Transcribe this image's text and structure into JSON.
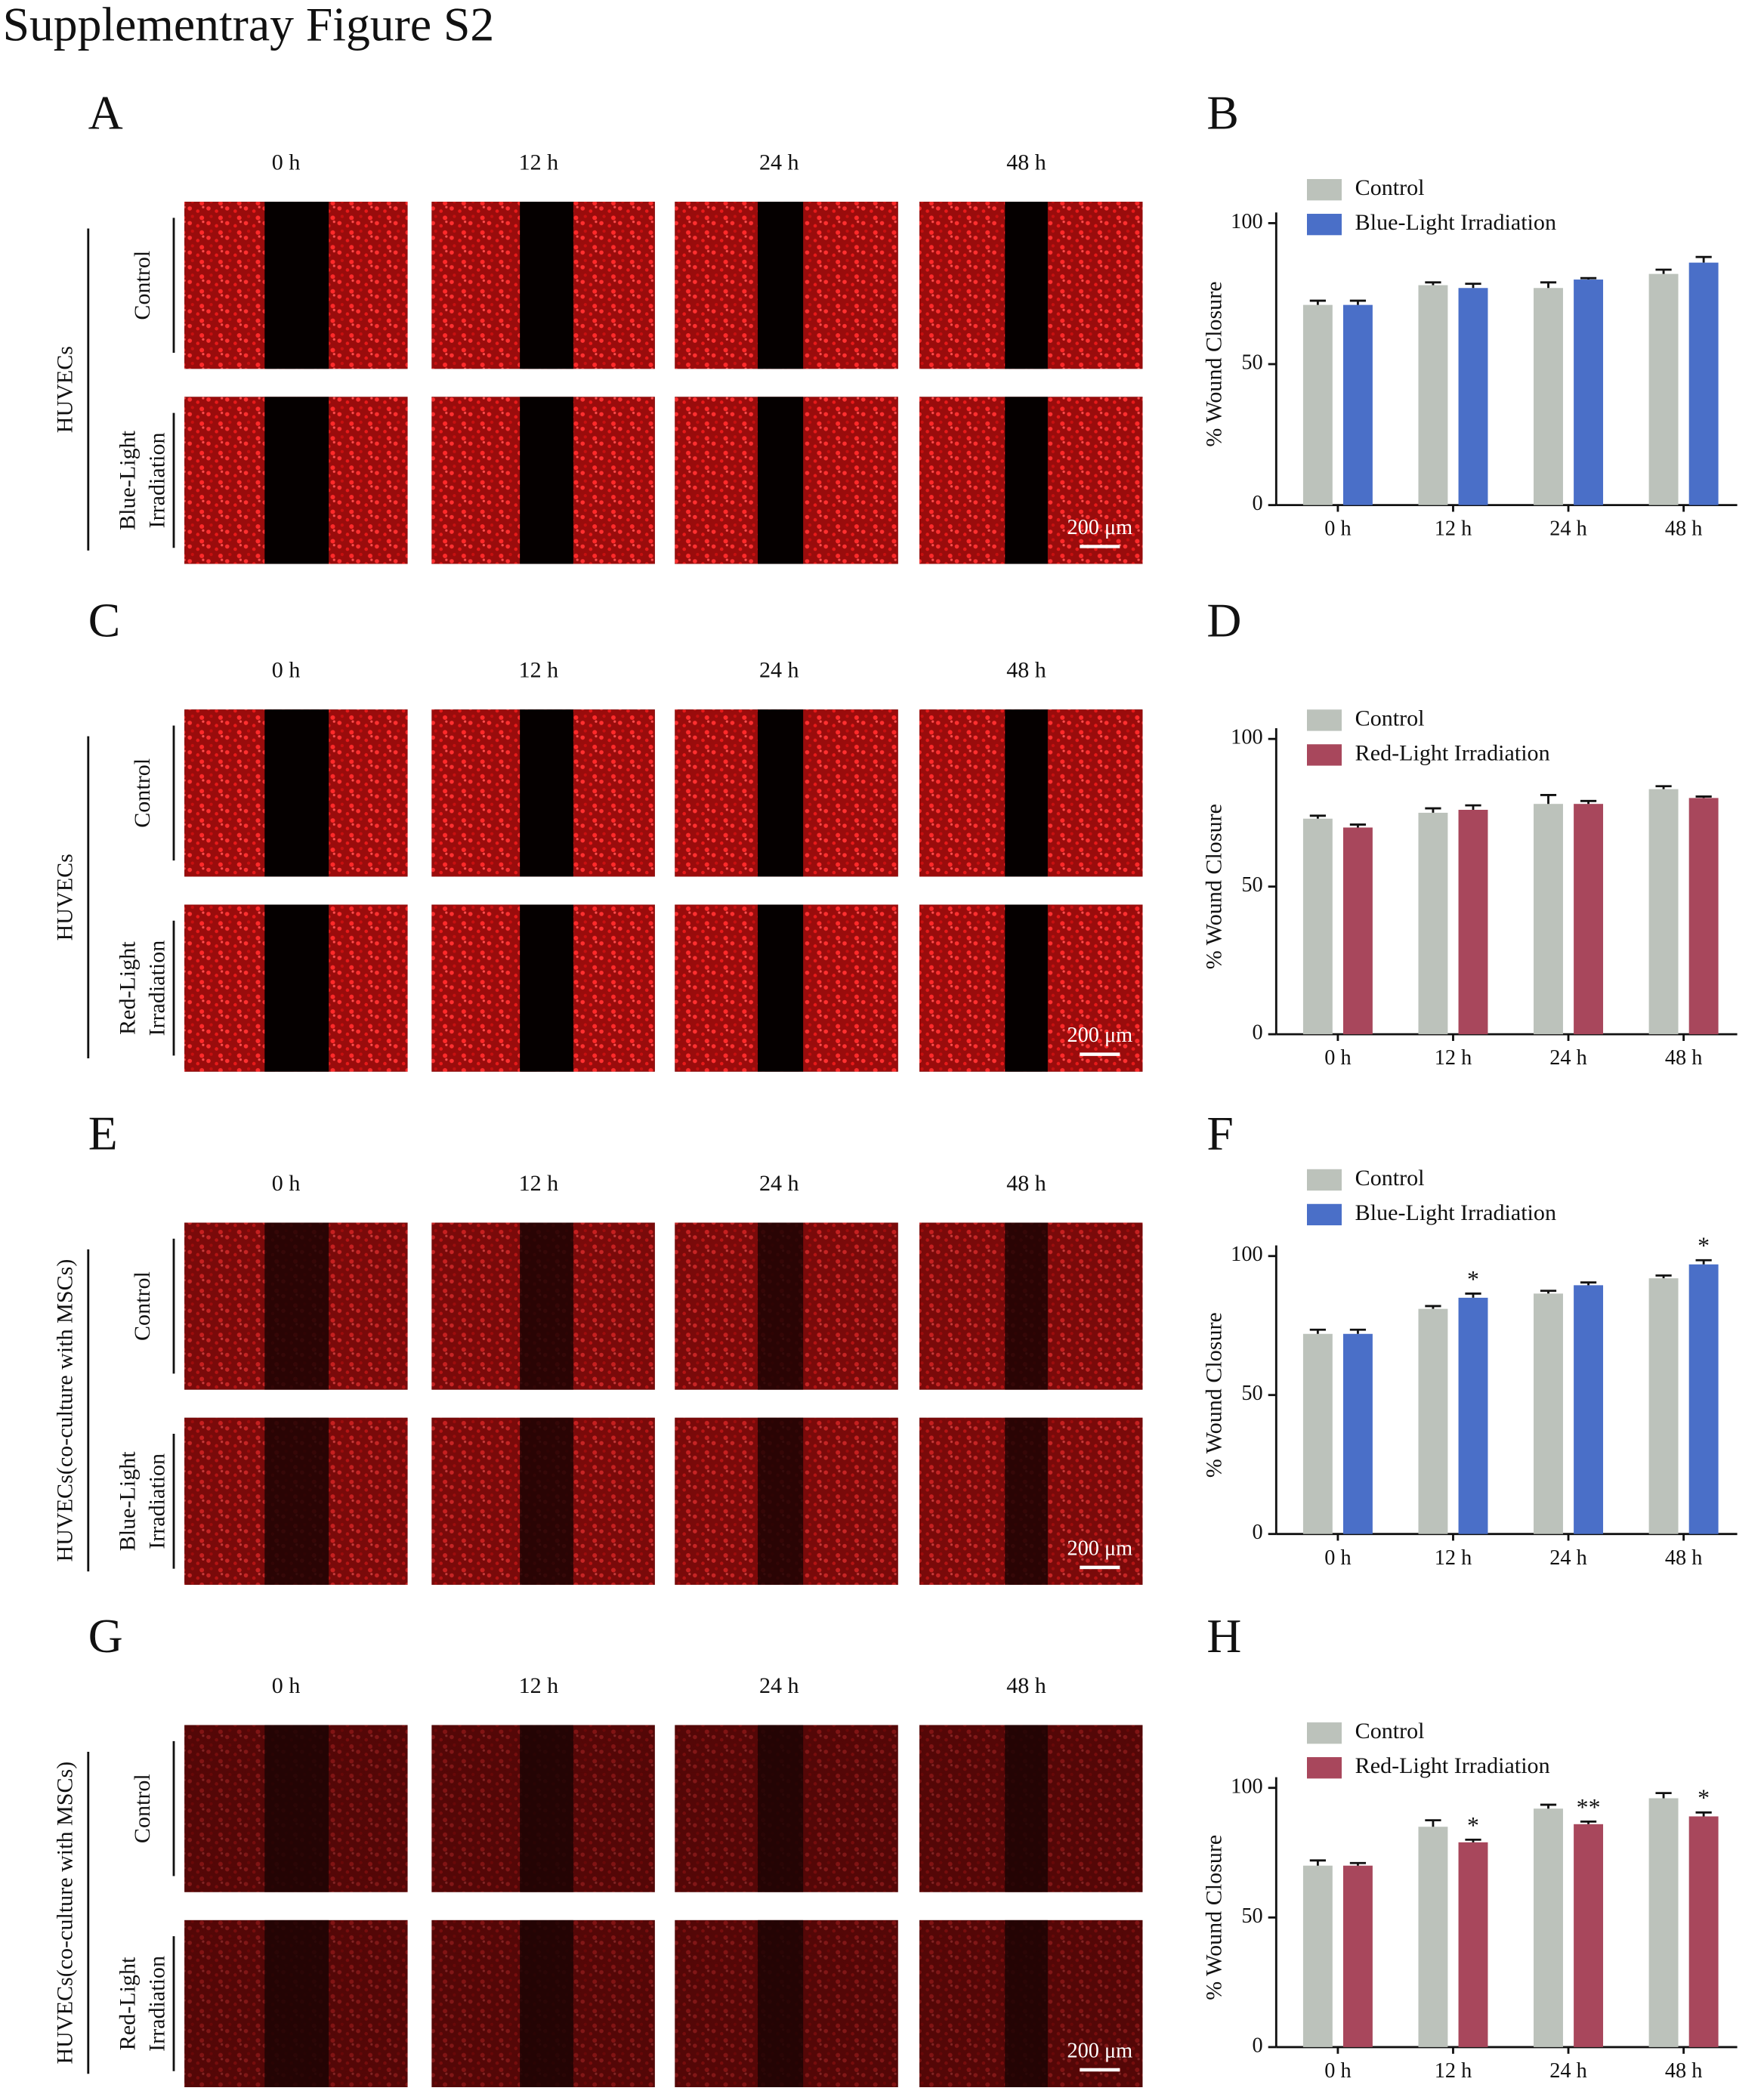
{
  "title": "Supplementray Figure S2",
  "image_panels": [
    {
      "letter": "A",
      "times": [
        "0 h",
        "12 h",
        "24 h",
        "48 h"
      ],
      "group": "HUVECs",
      "rows": [
        [
          "Control"
        ],
        [
          "Blue-Light",
          "Irradiation"
        ]
      ],
      "scale_bar": "200 μm"
    },
    {
      "letter": "C",
      "times": [
        "0 h",
        "12 h",
        "24 h",
        "48 h"
      ],
      "group": "HUVECs",
      "rows": [
        [
          "Control"
        ],
        [
          "Red-Light",
          "Irradiation"
        ]
      ],
      "scale_bar": "200 μm"
    },
    {
      "letter": "E",
      "times": [
        "0 h",
        "12 h",
        "24 h",
        "48 h"
      ],
      "group": "HUVECs(co-culture with MSCs)",
      "rows": [
        [
          "Control"
        ],
        [
          "Blue-Light",
          "Irradiation"
        ]
      ],
      "scale_bar": "200 μm"
    },
    {
      "letter": "G",
      "times": [
        "0 h",
        "12 h",
        "24 h",
        "48 h"
      ],
      "group": "HUVECs(co-culture with MSCs)",
      "rows": [
        [
          "Control"
        ],
        [
          "Red-Light",
          "Irradiation"
        ]
      ],
      "scale_bar": "200 μm"
    }
  ],
  "chart_data": [
    {
      "type": "bar",
      "label": "B",
      "ylabel": "% Wound Closure",
      "categories": [
        "0 h",
        "12 h",
        "24 h",
        "48 h"
      ],
      "series": [
        {
          "name": "Control",
          "color": "#bcc2bb",
          "values": [
            71,
            78,
            77,
            82
          ],
          "errors": [
            1.5,
            1,
            2,
            1.5
          ]
        },
        {
          "name": "Blue-Light Irradiation",
          "color": "#4a6fc8",
          "values": [
            71,
            77,
            80,
            86
          ],
          "errors": [
            1.5,
            1.5,
            0.5,
            2
          ]
        }
      ],
      "ylim": [
        0,
        100
      ],
      "yticks": [
        0,
        50,
        100
      ],
      "legend": "upper left"
    },
    {
      "type": "bar",
      "label": "D",
      "ylabel": "% Wound Closure",
      "categories": [
        "0 h",
        "12 h",
        "24 h",
        "48 h"
      ],
      "series": [
        {
          "name": "Control",
          "color": "#bcc2bb",
          "values": [
            73,
            75,
            78,
            83
          ],
          "errors": [
            1,
            1.5,
            3,
            1
          ]
        },
        {
          "name": "Red-Light Irradiation",
          "color": "#a8475c",
          "values": [
            70,
            76,
            78,
            80
          ],
          "errors": [
            1,
            1.5,
            1,
            0.5
          ]
        }
      ],
      "ylim": [
        0,
        100
      ],
      "yticks": [
        0,
        50,
        100
      ],
      "legend": "upper left"
    },
    {
      "type": "bar",
      "label": "F",
      "ylabel": "% Wound Closure",
      "categories": [
        "0 h",
        "12 h",
        "24 h",
        "48 h"
      ],
      "series": [
        {
          "name": "Control",
          "color": "#bcc2bb",
          "values": [
            72,
            81,
            86.5,
            92
          ],
          "errors": [
            1.5,
            1,
            1,
            1
          ]
        },
        {
          "name": "Blue-Light Irradiation",
          "color": "#4a6fc8",
          "values": [
            72,
            85,
            89.5,
            97
          ],
          "errors": [
            1.5,
            1.5,
            1,
            1.5
          ],
          "significance": [
            null,
            "*",
            null,
            "*"
          ]
        }
      ],
      "ylim": [
        0,
        100
      ],
      "yticks": [
        0,
        50,
        100
      ],
      "legend": "upper left"
    },
    {
      "type": "bar",
      "label": "H",
      "ylabel": "% Wound Closure",
      "categories": [
        "0 h",
        "12 h",
        "24 h",
        "48 h"
      ],
      "series": [
        {
          "name": "Control",
          "color": "#bcc2bb",
          "values": [
            70,
            85,
            92,
            96
          ],
          "errors": [
            2,
            2.5,
            1.5,
            2
          ]
        },
        {
          "name": "Red-Light Irradiation",
          "color": "#a8475c",
          "values": [
            70,
            79,
            86,
            89
          ],
          "errors": [
            1,
            1,
            1,
            1.5
          ],
          "significance": [
            null,
            "*",
            "**",
            "*"
          ]
        }
      ],
      "ylim": [
        0,
        100
      ],
      "yticks": [
        0,
        50,
        100
      ],
      "legend": "upper left"
    }
  ]
}
